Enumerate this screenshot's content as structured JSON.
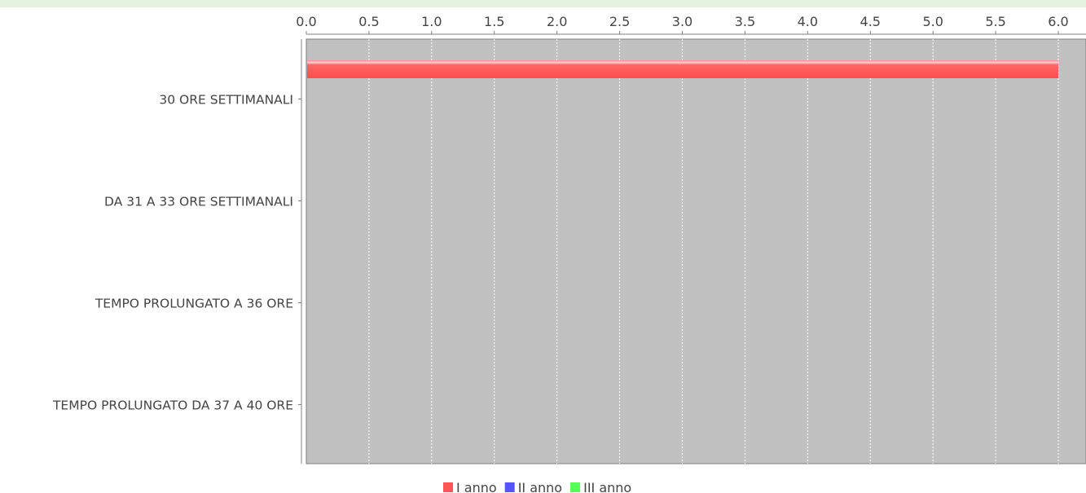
{
  "chart_data": {
    "type": "bar",
    "orientation": "horizontal",
    "categories": [
      "30 ORE SETTIMANALI",
      "DA 31 A 33 ORE SETTIMANALI",
      "TEMPO PROLUNGATO A 36 ORE",
      "TEMPO PROLUNGATO DA 37 A 40 ORE"
    ],
    "series": [
      {
        "name": "I anno",
        "color": "#ff5555",
        "values": [
          6,
          0,
          0,
          0
        ]
      },
      {
        "name": "II anno",
        "color": "#5555ff",
        "values": [
          0,
          0,
          0,
          0
        ]
      },
      {
        "name": "III anno",
        "color": "#55ff55",
        "values": [
          0,
          0,
          0,
          0
        ]
      }
    ],
    "xlim": [
      0,
      6.2
    ],
    "xticks": [
      "0.0",
      "0.5",
      "1.0",
      "1.5",
      "2.0",
      "2.5",
      "3.0",
      "3.5",
      "4.0",
      "4.5",
      "5.0",
      "5.5",
      "6.0"
    ],
    "x_axis_position": "top",
    "grid": true,
    "legend_position": "bottom",
    "plot_background": "#c0c0c0"
  }
}
